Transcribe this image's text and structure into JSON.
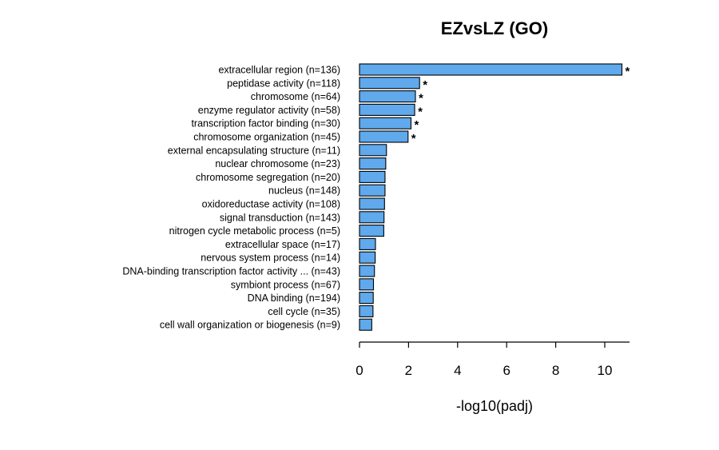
{
  "chart_data": {
    "type": "bar",
    "orientation": "horizontal",
    "title": "EZvsLZ (GO)",
    "xlabel": "-log10(padj)",
    "ylabel": "",
    "xlim": [
      0,
      11
    ],
    "xticks": [
      "0",
      "2",
      "4",
      "6",
      "8",
      "10"
    ],
    "grid": false,
    "bar_color": "#5fa9ec",
    "categories": [
      "extracellular region (n=136)",
      "peptidase activity (n=118)",
      "chromosome (n=64)",
      "enzyme regulator activity (n=58)",
      "transcription factor binding (n=30)",
      "chromosome organization (n=45)",
      "external encapsulating structure (n=11)",
      "nuclear chromosome (n=23)",
      "chromosome segregation (n=20)",
      "nucleus (n=148)",
      "oxidoreductase activity (n=108)",
      "signal transduction (n=143)",
      "nitrogen cycle metabolic process (n=5)",
      "extracellular space (n=17)",
      "nervous system process (n=14)",
      "DNA-binding transcription factor activity ... (n=43)",
      "symbiont process (n=67)",
      "DNA binding (n=194)",
      "cell cycle (n=35)",
      "cell wall organization or biogenesis (n=9)"
    ],
    "values": [
      10.7,
      2.45,
      2.28,
      2.25,
      2.1,
      1.98,
      1.1,
      1.07,
      1.04,
      1.04,
      1.02,
      1.0,
      0.99,
      0.65,
      0.64,
      0.61,
      0.57,
      0.56,
      0.55,
      0.5
    ],
    "significant": [
      true,
      true,
      true,
      true,
      true,
      true,
      false,
      false,
      false,
      false,
      false,
      false,
      false,
      false,
      false,
      false,
      false,
      false,
      false,
      false
    ],
    "marker": "*"
  }
}
